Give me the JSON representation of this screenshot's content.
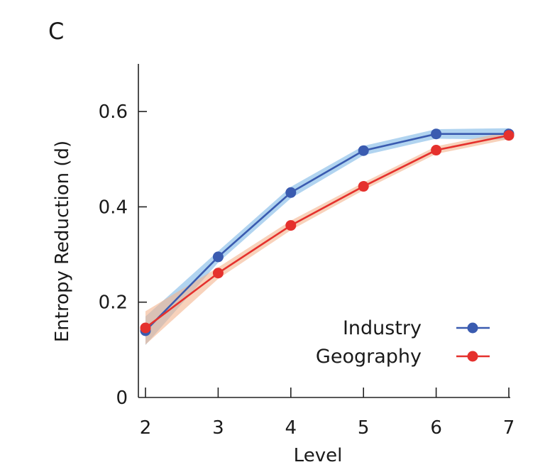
{
  "panel_label": "C",
  "chart_data": {
    "type": "line",
    "x": [
      2,
      3,
      4,
      5,
      6,
      7
    ],
    "xlabel": "Level",
    "ylabel": "Entropy Reduction (d)",
    "xlim": [
      2,
      7
    ],
    "ylim": [
      0,
      0.7
    ],
    "yticks": [
      0,
      0.2,
      0.4,
      0.6
    ],
    "ytick_labels": [
      "0",
      "0.2",
      "0.4",
      "0.6"
    ],
    "xticks": [
      2,
      3,
      4,
      5,
      6,
      7
    ],
    "xtick_labels": [
      "2",
      "3",
      "4",
      "5",
      "6",
      "7"
    ],
    "grid": false,
    "legend_position": "bottom-right",
    "series": [
      {
        "name": "Industry",
        "color": "#3a5bb0",
        "band_color": "#7db8e6",
        "values": [
          0.14,
          0.295,
          0.43,
          0.518,
          0.553,
          0.553
        ],
        "band": [
          0.03,
          0.012,
          0.012,
          0.01,
          0.01,
          0.012
        ]
      },
      {
        "name": "Geography",
        "color": "#e5312d",
        "band_color": "#f3b48e",
        "values": [
          0.146,
          0.261,
          0.361,
          0.443,
          0.519,
          0.55
        ],
        "band": [
          0.035,
          0.012,
          0.01,
          0.008,
          0.008,
          0.008
        ]
      }
    ]
  }
}
